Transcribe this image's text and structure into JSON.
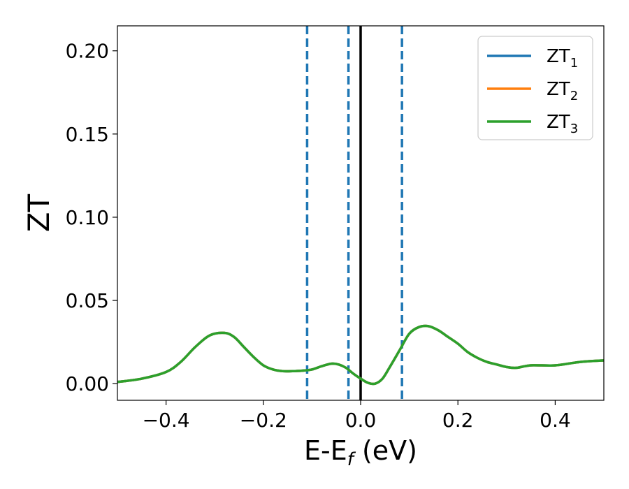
{
  "chart_data": {
    "type": "line",
    "xlabel": "E-E",
    "xlabel_sub": "f",
    "xlabel_unit": " (eV)",
    "ylabel": "ZT",
    "xlim": [
      -0.5,
      0.5
    ],
    "ylim": [
      -0.01,
      0.215
    ],
    "xticks": [
      -0.4,
      -0.2,
      0.0,
      0.2,
      0.4
    ],
    "xtick_labels": [
      "−0.4",
      "−0.2",
      "0.0",
      "0.2",
      "0.4"
    ],
    "yticks": [
      0.0,
      0.05,
      0.1,
      0.15,
      0.2
    ],
    "ytick_labels": [
      "0.00",
      "0.05",
      "0.10",
      "0.15",
      "0.20"
    ],
    "grid": false,
    "legend_position": "top-right",
    "vlines": [
      {
        "x": -0.11,
        "style": "dashed",
        "color": "#1f77b4"
      },
      {
        "x": -0.025,
        "style": "dashed",
        "color": "#1f77b4"
      },
      {
        "x": 0.0,
        "style": "solid",
        "color": "#000000"
      },
      {
        "x": 0.085,
        "style": "dashed",
        "color": "#1f77b4"
      }
    ],
    "series": [
      {
        "name": "ZT",
        "sub": "1",
        "color": "#1f77b4",
        "x": [
          -0.5,
          -0.45,
          -0.4,
          -0.37,
          -0.34,
          -0.31,
          -0.28,
          -0.26,
          -0.24,
          -0.22,
          -0.2,
          -0.18,
          -0.16,
          -0.14,
          -0.12,
          -0.1,
          -0.08,
          -0.06,
          -0.045,
          -0.03,
          -0.015,
          0.0,
          0.015,
          0.03,
          0.045,
          0.06,
          0.08,
          0.1,
          0.12,
          0.14,
          0.16,
          0.18,
          0.2,
          0.22,
          0.24,
          0.26,
          0.28,
          0.3,
          0.32,
          0.35,
          0.4,
          0.45,
          0.5
        ],
        "y": [
          0.001,
          0.003,
          0.007,
          0.013,
          0.022,
          0.029,
          0.0305,
          0.028,
          0.022,
          0.016,
          0.011,
          0.0085,
          0.0075,
          0.0075,
          0.0078,
          0.0085,
          0.0105,
          0.012,
          0.0115,
          0.0095,
          0.006,
          0.003,
          0.0005,
          0.0,
          0.003,
          0.01,
          0.02,
          0.03,
          0.034,
          0.0345,
          0.032,
          0.028,
          0.024,
          0.019,
          0.0155,
          0.013,
          0.0115,
          0.01,
          0.0095,
          0.011,
          0.011,
          0.013,
          0.014
        ]
      },
      {
        "name": "ZT",
        "sub": "2",
        "color": "#ff7f0e",
        "x": [
          -0.5,
          -0.45,
          -0.4,
          -0.37,
          -0.34,
          -0.31,
          -0.28,
          -0.26,
          -0.24,
          -0.22,
          -0.2,
          -0.18,
          -0.16,
          -0.14,
          -0.12,
          -0.1,
          -0.08,
          -0.06,
          -0.045,
          -0.03,
          -0.015,
          0.0,
          0.015,
          0.03,
          0.045,
          0.06,
          0.08,
          0.1,
          0.12,
          0.14,
          0.16,
          0.18,
          0.2,
          0.22,
          0.24,
          0.26,
          0.28,
          0.3,
          0.32,
          0.35,
          0.4,
          0.45,
          0.5
        ],
        "y": [
          0.001,
          0.003,
          0.007,
          0.013,
          0.022,
          0.029,
          0.0305,
          0.028,
          0.022,
          0.016,
          0.011,
          0.0085,
          0.0075,
          0.0075,
          0.0078,
          0.0085,
          0.0105,
          0.012,
          0.0115,
          0.0095,
          0.006,
          0.003,
          0.0005,
          0.0,
          0.003,
          0.01,
          0.02,
          0.03,
          0.034,
          0.0345,
          0.032,
          0.028,
          0.024,
          0.019,
          0.0155,
          0.013,
          0.0115,
          0.01,
          0.0095,
          0.011,
          0.011,
          0.013,
          0.014
        ]
      },
      {
        "name": "ZT",
        "sub": "3",
        "color": "#2ca02c",
        "x": [
          -0.5,
          -0.45,
          -0.4,
          -0.37,
          -0.34,
          -0.31,
          -0.28,
          -0.26,
          -0.24,
          -0.22,
          -0.2,
          -0.18,
          -0.16,
          -0.14,
          -0.12,
          -0.1,
          -0.08,
          -0.06,
          -0.045,
          -0.03,
          -0.015,
          0.0,
          0.015,
          0.03,
          0.045,
          0.06,
          0.08,
          0.1,
          0.12,
          0.14,
          0.16,
          0.18,
          0.2,
          0.22,
          0.24,
          0.26,
          0.28,
          0.3,
          0.32,
          0.35,
          0.4,
          0.45,
          0.5
        ],
        "y": [
          0.001,
          0.003,
          0.007,
          0.013,
          0.022,
          0.029,
          0.0305,
          0.028,
          0.022,
          0.016,
          0.011,
          0.0085,
          0.0075,
          0.0075,
          0.0078,
          0.0085,
          0.0105,
          0.012,
          0.0115,
          0.0095,
          0.006,
          0.003,
          0.0005,
          0.0,
          0.003,
          0.01,
          0.02,
          0.03,
          0.034,
          0.0345,
          0.032,
          0.028,
          0.024,
          0.019,
          0.0155,
          0.013,
          0.0115,
          0.01,
          0.0095,
          0.011,
          0.011,
          0.013,
          0.014
        ]
      }
    ]
  }
}
